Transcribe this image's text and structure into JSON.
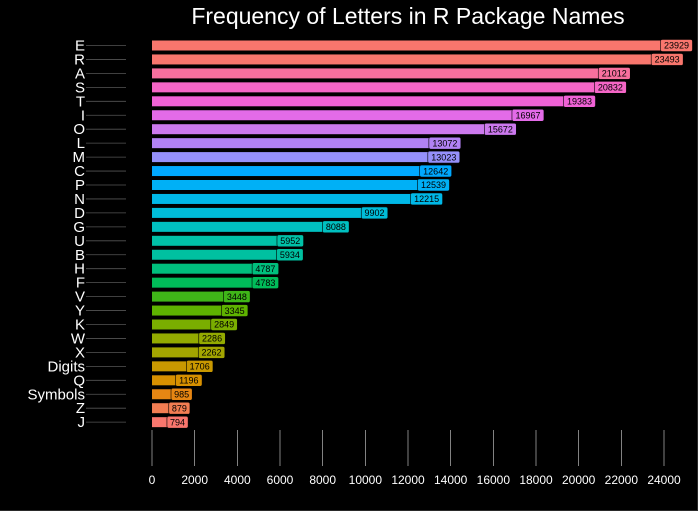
{
  "chart_data": {
    "type": "bar",
    "orientation": "horizontal",
    "title": "Frequency of Letters in R Package Names",
    "xlabel": "",
    "ylabel": "",
    "xlim": [
      0,
      24000
    ],
    "xticks": [
      "0",
      "2000",
      "4000",
      "6000",
      "8000",
      "10000",
      "12000",
      "14000",
      "16000",
      "18000",
      "20000",
      "22000",
      "24000"
    ],
    "grid": "vertical major lines",
    "legend": "none",
    "background": "#000000",
    "categories": [
      "E",
      "R",
      "A",
      "S",
      "T",
      "I",
      "O",
      "L",
      "M",
      "C",
      "P",
      "N",
      "D",
      "G",
      "U",
      "B",
      "H",
      "F",
      "V",
      "Y",
      "K",
      "W",
      "X",
      "Digits",
      "Q",
      "Symbols",
      "Z",
      "J"
    ],
    "values": [
      23929,
      23493,
      21012,
      20832,
      19383,
      16967,
      15672,
      13072,
      13023,
      12642,
      12539,
      12215,
      9902,
      8088,
      5952,
      5934,
      4787,
      4783,
      3448,
      3345,
      2849,
      2286,
      2262,
      1706,
      1196,
      985,
      879,
      794
    ],
    "colors": [
      "#F8766D",
      "#F8766D",
      "#F7709E",
      "#F466C6",
      "#F062D6",
      "#E36BE8",
      "#CC79EE",
      "#B282F4",
      "#9590FA",
      "#00A8FF",
      "#00B0F6",
      "#00B8E7",
      "#00BCD8",
      "#00C0C0",
      "#00C1A7",
      "#00C0A0",
      "#00BF7D",
      "#00BC59",
      "#3FB618",
      "#5EB300",
      "#7AAE00",
      "#93AA00",
      "#A3A500",
      "#C99800",
      "#D79000",
      "#E68613",
      "#F27D52",
      "#F8766D"
    ]
  }
}
